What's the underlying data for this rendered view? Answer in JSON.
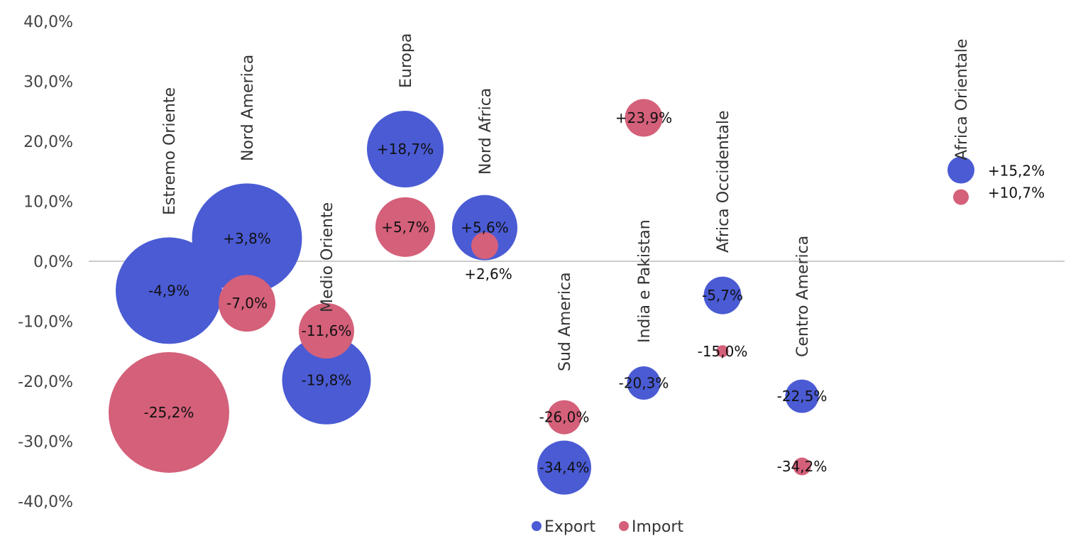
{
  "chart_data": {
    "type": "bubble",
    "ylim": [
      -40,
      40
    ],
    "y_ticks": [
      "40,0%",
      "30,0%",
      "20,0%",
      "10,0%",
      "0,0%",
      "-10,0%",
      "-20,0%",
      "-30,0%",
      "-40,0%"
    ],
    "legend": {
      "placement": "bottom",
      "entries": [
        "Export",
        "Import"
      ]
    },
    "series": [
      {
        "name": "Export",
        "color": "#4A5BD4"
      },
      {
        "name": "Import",
        "color": "#D4607A"
      }
    ],
    "categories": [
      "Estremo Oriente",
      "Nord America",
      "Medio Oriente",
      "Europa",
      "Nord Africa",
      "Sud America",
      "India e Pakistan",
      "Africa Occidentale",
      "Centro America",
      "Africa Orientale"
    ],
    "points": [
      {
        "region": "Estremo Oriente",
        "series": "Export",
        "y": -4.9,
        "label": "-4,9%",
        "size": 150
      },
      {
        "region": "Estremo Oriente",
        "series": "Import",
        "y": -25.2,
        "label": "-25,2%",
        "size": 170
      },
      {
        "region": "Nord America",
        "series": "Export",
        "y": 3.8,
        "label": "+3,8%",
        "size": 155
      },
      {
        "region": "Nord America",
        "series": "Import",
        "y": -7.0,
        "label": "-7,0%",
        "size": 80
      },
      {
        "region": "Medio Oriente",
        "series": "Export",
        "y": -19.8,
        "label": "-19,8%",
        "size": 125
      },
      {
        "region": "Medio Oriente",
        "series": "Import",
        "y": -11.6,
        "label": "-11,6%",
        "size": 78
      },
      {
        "region": "Europa",
        "series": "Export",
        "y": 18.7,
        "label": "+18,7%",
        "size": 108
      },
      {
        "region": "Europa",
        "series": "Import",
        "y": 5.7,
        "label": "+5,7%",
        "size": 84
      },
      {
        "region": "Nord Africa",
        "series": "Export",
        "y": 5.6,
        "label": "+5,6%",
        "size": 92
      },
      {
        "region": "Nord Africa",
        "series": "Import",
        "y": 2.6,
        "label": "+2,6%",
        "size": 38
      },
      {
        "region": "Sud America",
        "series": "Export",
        "y": -34.4,
        "label": "-34,4%",
        "size": 76
      },
      {
        "region": "Sud America",
        "series": "Import",
        "y": -26.0,
        "label": "-26,0%",
        "size": 48
      },
      {
        "region": "India e Pakistan",
        "series": "Export",
        "y": -20.3,
        "label": "-20,3%",
        "size": 47
      },
      {
        "region": "India e Pakistan",
        "series": "Import",
        "y": 23.9,
        "label": "+23,9%",
        "size": 53
      },
      {
        "region": "Africa Occidentale",
        "series": "Export",
        "y": -5.7,
        "label": "-5,7%",
        "size": 53
      },
      {
        "region": "Africa Occidentale",
        "series": "Import",
        "y": -15.0,
        "label": "-15,0%",
        "size": 17
      },
      {
        "region": "Centro America",
        "series": "Export",
        "y": -22.5,
        "label": "-22,5%",
        "size": 47
      },
      {
        "region": "Centro America",
        "series": "Import",
        "y": -34.2,
        "label": "-34,2%",
        "size": 25
      },
      {
        "region": "Africa Orientale",
        "series": "Export",
        "y": 15.2,
        "label": "+15,2%",
        "size": 38
      },
      {
        "region": "Africa Orientale",
        "series": "Import",
        "y": 10.7,
        "label": "+10,7%",
        "size": 22
      }
    ]
  }
}
